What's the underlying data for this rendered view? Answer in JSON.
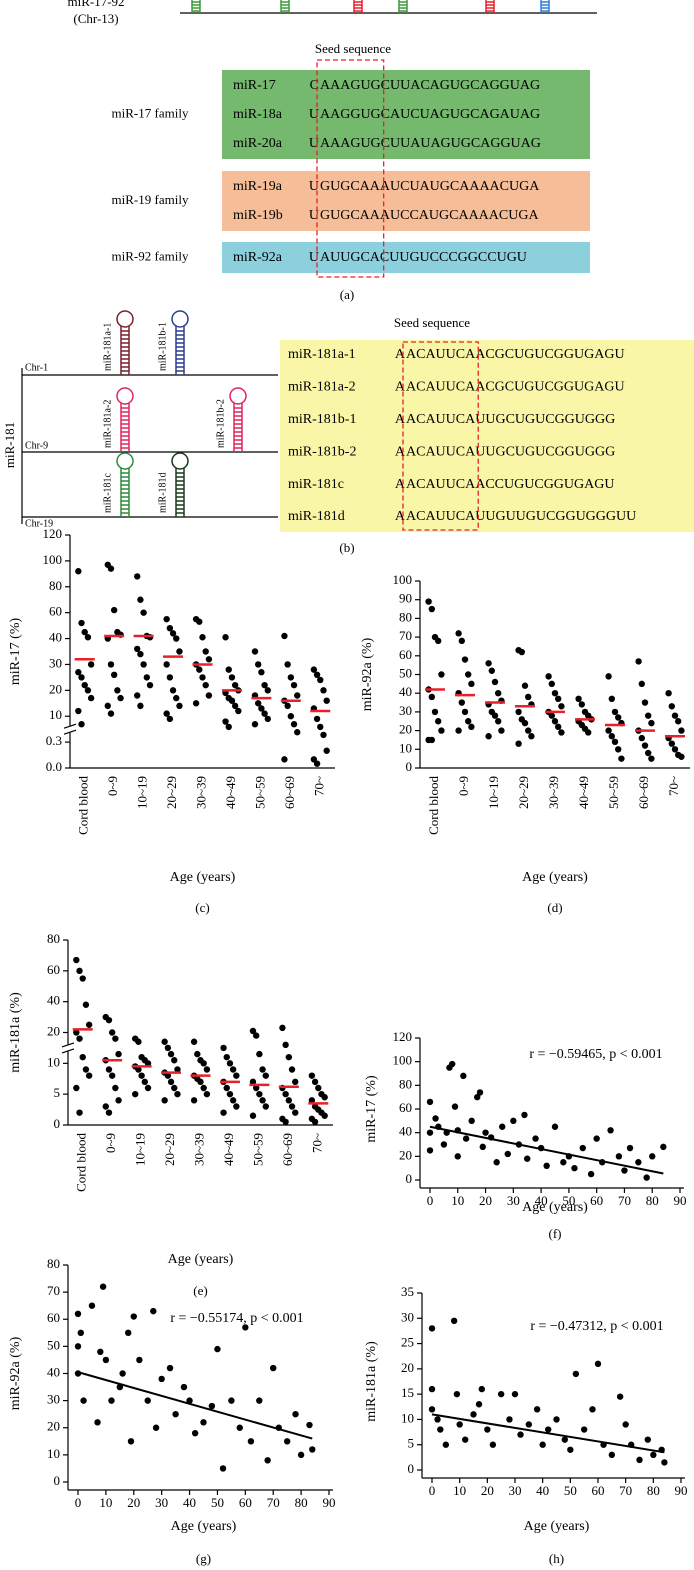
{
  "panel_a": {
    "cluster": "miR-17-92",
    "chromosome": "(Chr-13)",
    "seed_title": "Seed sequence",
    "label": "(a)",
    "families": [
      {
        "name": "miR-17 family",
        "rows": [
          {
            "mirna": "miR-17",
            "pre": "C",
            "seed": "AAAGUG",
            "post": "CUUACAGUGCAGGUAG"
          },
          {
            "mirna": "miR-18a",
            "pre": "U",
            "seed": "AAGGUG",
            "post": "CAUCUAGUGCAGAUAG"
          },
          {
            "mirna": "miR-20a",
            "pre": "U",
            "seed": "AAAGUG",
            "post": "CUUAUAGUGCAGGUAG"
          }
        ]
      },
      {
        "name": "miR-19 family",
        "rows": [
          {
            "mirna": "miR-19a",
            "pre": "U",
            "seed": "GUGCAA",
            "post": "AUCUAUGCAAAACUGA"
          },
          {
            "mirna": "miR-19b",
            "pre": "U",
            "seed": "GUGCAA",
            "post": "AUCCAUGCAAAACUGA"
          }
        ]
      },
      {
        "name": "miR-92 family",
        "rows": [
          {
            "mirna": "miR-92a",
            "pre": "U",
            "seed": "AUUGCA",
            "post": "CUUGUCCCGGCCUGU"
          }
        ]
      }
    ]
  },
  "panel_b": {
    "cluster": "miR-181",
    "chromosomes": [
      "Chr-1",
      "Chr-9",
      "Chr-19"
    ],
    "hairpins": [
      "miR-181a-1",
      "miR-181b-1",
      "miR-181a-2",
      "miR-181b-2",
      "miR-181c",
      "miR-181d"
    ],
    "seed_title": "Seed sequence",
    "label": "(b)",
    "rows": [
      {
        "mirna": "miR-181a-1",
        "pre": "A",
        "seed": "ACAUUCA",
        "post": "ACGCUGUCGGUGAGU"
      },
      {
        "mirna": "miR-181a-2",
        "pre": "A",
        "seed": "ACAUUCA",
        "post": "ACGCUGUCGGUGAGU"
      },
      {
        "mirna": "miR-181b-1",
        "pre": "A",
        "seed": "ACAUUCA",
        "post": "UUGCUGUCGGUGGG"
      },
      {
        "mirna": "miR-181b-2",
        "pre": "A",
        "seed": "ACAUUCA",
        "post": "UUGCUGUCGGUGGG"
      },
      {
        "mirna": "miR-181c",
        "pre": "A",
        "seed": "ACAUUCA",
        "post": "ACCUGUCGGUGAGU"
      },
      {
        "mirna": "miR-181d",
        "pre": "A",
        "seed": "ACAUUCA",
        "post": "UUGUUGUCGGUGGGUU"
      }
    ]
  },
  "chart_data": [
    {
      "type": "strip",
      "panel_label": "(c)",
      "y_label": "miR-17 (%)",
      "x_label": "Age (years)",
      "color": "#000000",
      "median_color": "#e8202a",
      "axis_break": true,
      "categories": [
        "Cord blood",
        "0~9",
        "10~19",
        "20~29",
        "30~39",
        "40~49",
        "50~59",
        "60~69",
        "70~"
      ],
      "values": [
        [
          92,
          52,
          45,
          41,
          30,
          27,
          25,
          22,
          20,
          17,
          12,
          7
        ],
        [
          97,
          94,
          62,
          45,
          43,
          40,
          30,
          26,
          20,
          17,
          14,
          11
        ],
        [
          88,
          70,
          60,
          42,
          41,
          36,
          34,
          30,
          25,
          22,
          18,
          14
        ],
        [
          55,
          48,
          44,
          40,
          35,
          30,
          25,
          20,
          17,
          14,
          11,
          9
        ],
        [
          55,
          53,
          41,
          35,
          32,
          30,
          28,
          25,
          22,
          18,
          15
        ],
        [
          41,
          28,
          25,
          22,
          20,
          19,
          17,
          16,
          14,
          12,
          8,
          6
        ],
        [
          35,
          30,
          27,
          22,
          20,
          18,
          15,
          13,
          11,
          9,
          7
        ],
        [
          42,
          30,
          25,
          22,
          18,
          16,
          14,
          10,
          7,
          4,
          0.1
        ],
        [
          28,
          26,
          24,
          20,
          16,
          13,
          9,
          6,
          3,
          0.2,
          0.1,
          0.05
        ]
      ],
      "medians": [
        32,
        42,
        42,
        33,
        30,
        20,
        17,
        16,
        12
      ],
      "ylim": [
        0,
        120
      ],
      "yticks": [
        {
          "value": 0,
          "label": "0.0"
        },
        0.3,
        10,
        20,
        30,
        40,
        60,
        80,
        100,
        120
      ]
    },
    {
      "type": "strip",
      "panel_label": "(d)",
      "y_label": "miR-92a (%)",
      "x_label": "Age (years)",
      "color": "#000000",
      "median_color": "#e8202a",
      "axis_break": false,
      "categories": [
        "Cord blood",
        "0~9",
        "10~19",
        "20~29",
        "30~39",
        "40~49",
        "50~59",
        "60~69",
        "70~"
      ],
      "values": [
        [
          89,
          85,
          70,
          68,
          50,
          42,
          38,
          30,
          25,
          20,
          15,
          15
        ],
        [
          72,
          68,
          58,
          50,
          45,
          40,
          35,
          30,
          25,
          22,
          20
        ],
        [
          56,
          52,
          46,
          40,
          36,
          34,
          30,
          28,
          25,
          20,
          17
        ],
        [
          63,
          62,
          44,
          38,
          34,
          30,
          26,
          24,
          20,
          17,
          13
        ],
        [
          49,
          45,
          40,
          37,
          33,
          30,
          28,
          25,
          22,
          19
        ],
        [
          37,
          34,
          30,
          28,
          26,
          25,
          23,
          21,
          19
        ],
        [
          49,
          37,
          30,
          27,
          24,
          20,
          17,
          14,
          10,
          5
        ],
        [
          57,
          45,
          35,
          28,
          24,
          20,
          16,
          12,
          8,
          5
        ],
        [
          40,
          33,
          28,
          25,
          20,
          16,
          13,
          10,
          7,
          6
        ]
      ],
      "medians": [
        42,
        39,
        35,
        33,
        30,
        26,
        23,
        20,
        17
      ],
      "ylim": [
        0,
        100
      ],
      "yticks": [
        0,
        10,
        20,
        30,
        40,
        50,
        60,
        70,
        80,
        90,
        100
      ]
    },
    {
      "type": "strip",
      "panel_label": "(e)",
      "y_label": "miR-181a (%)",
      "x_label": "Age (years)",
      "color": "#000000",
      "median_color": "#e8202a",
      "axis_break": true,
      "categories": [
        "Cord blood",
        "0~9",
        "10~19",
        "20~29",
        "30~39",
        "40~49",
        "50~59",
        "60~69",
        "70~"
      ],
      "values": [
        [
          67,
          60,
          55,
          38,
          25,
          20,
          18,
          12,
          9,
          8,
          6,
          2
        ],
        [
          30,
          28,
          20,
          18,
          13,
          11,
          9,
          8,
          6,
          4,
          3,
          2
        ],
        [
          18,
          17,
          12,
          11,
          10,
          9.5,
          9,
          8,
          7,
          6,
          5
        ],
        [
          17,
          15,
          13,
          11,
          9,
          8.5,
          8,
          7,
          6,
          5,
          4
        ],
        [
          17,
          13,
          11,
          10,
          9,
          8,
          7.5,
          7,
          6,
          5,
          4
        ],
        [
          15,
          12,
          10,
          9,
          8,
          7,
          6,
          5,
          4,
          3,
          2
        ],
        [
          21,
          19,
          13,
          9,
          8,
          7,
          6,
          5,
          4,
          3,
          1.5
        ],
        [
          23,
          16,
          12,
          9,
          7,
          6,
          5,
          4,
          3,
          2,
          1,
          0.5
        ],
        [
          8,
          7,
          6,
          5,
          4.5,
          4,
          3,
          2.5,
          2,
          1.5,
          1,
          0.5
        ]
      ],
      "medians": [
        22,
        11,
        9.5,
        8.5,
        8,
        7,
        6.5,
        6.2,
        3.5
      ],
      "ylim": [
        0,
        80
      ],
      "yticks": [
        0,
        5,
        10,
        20,
        40,
        60,
        80
      ]
    },
    {
      "type": "scatter",
      "panel_label": "(f)",
      "y_label": "miR-17 (%)",
      "x_label": "Age (years)",
      "annotation": "r = −0.59465, p < 0.001",
      "color": "#000000",
      "x": [
        0,
        0,
        0,
        2,
        3,
        5,
        6,
        7,
        8,
        9,
        10,
        10,
        12,
        13,
        15,
        17,
        18,
        19,
        20,
        22,
        24,
        26,
        28,
        30,
        32,
        34,
        35,
        38,
        40,
        42,
        45,
        48,
        50,
        52,
        55,
        58,
        60,
        62,
        65,
        68,
        70,
        72,
        75,
        78,
        80,
        84
      ],
      "values": [
        66,
        40,
        25,
        52,
        45,
        30,
        40,
        95,
        98,
        62,
        42,
        20,
        88,
        35,
        50,
        70,
        74,
        28,
        40,
        36,
        15,
        45,
        22,
        50,
        30,
        55,
        18,
        35,
        27,
        12,
        45,
        15,
        20,
        10,
        27,
        5,
        35,
        15,
        42,
        20,
        8,
        27,
        15,
        2,
        20,
        28
      ],
      "trend": {
        "x": [
          0,
          84
        ],
        "y": [
          45,
          5.5
        ]
      },
      "xlim": [
        0,
        90
      ],
      "xticks": [
        0,
        10,
        20,
        30,
        40,
        50,
        60,
        70,
        80,
        90
      ],
      "ylim": [
        0,
        120
      ],
      "yticks": [
        0,
        20,
        40,
        60,
        80,
        100,
        120
      ]
    },
    {
      "type": "scatter",
      "panel_label": "(g)",
      "y_label": "miR-92a (%)",
      "x_label": "Age (years)",
      "annotation": "r = −0.55174, p < 0.001",
      "color": "#000000",
      "x": [
        0,
        0,
        0,
        1,
        2,
        5,
        7,
        8,
        9,
        10,
        12,
        15,
        16,
        18,
        19,
        20,
        22,
        25,
        27,
        28,
        30,
        33,
        35,
        38,
        40,
        42,
        45,
        48,
        50,
        52,
        55,
        58,
        60,
        62,
        65,
        68,
        70,
        72,
        75,
        78,
        80,
        83,
        84
      ],
      "values": [
        62,
        50,
        40,
        55,
        30,
        65,
        22,
        48,
        72,
        45,
        30,
        35,
        40,
        55,
        15,
        61,
        45,
        30,
        63,
        20,
        38,
        42,
        25,
        35,
        30,
        18,
        22,
        28,
        49,
        5,
        30,
        20,
        57,
        15,
        30,
        8,
        42,
        20,
        15,
        25,
        10,
        21,
        12
      ],
      "trend": {
        "x": [
          0,
          84
        ],
        "y": [
          40.5,
          16
        ]
      },
      "xlim": [
        0,
        90
      ],
      "xticks": [
        0,
        10,
        20,
        30,
        40,
        50,
        60,
        70,
        80,
        90
      ],
      "ylim": [
        0,
        80
      ],
      "yticks": [
        0,
        10,
        20,
        30,
        40,
        50,
        60,
        70,
        80
      ]
    },
    {
      "type": "scatter",
      "panel_label": "(h)",
      "y_label": "miR-181a (%)",
      "x_label": "Age (years)",
      "annotation": "r = −0.47312, p < 0.001",
      "color": "#000000",
      "x": [
        0,
        0,
        0,
        2,
        3,
        5,
        8,
        9,
        10,
        12,
        15,
        17,
        18,
        20,
        22,
        25,
        28,
        30,
        32,
        35,
        38,
        40,
        42,
        45,
        48,
        50,
        52,
        55,
        58,
        60,
        62,
        65,
        68,
        70,
        72,
        75,
        78,
        80,
        83,
        84
      ],
      "values": [
        28,
        16,
        12,
        10,
        8,
        5,
        29.5,
        15,
        9,
        6,
        11,
        13,
        16,
        8,
        5,
        15,
        10,
        15,
        7,
        9,
        12,
        5,
        8,
        10,
        6,
        4,
        19,
        8,
        12,
        21,
        5,
        3,
        14.5,
        9,
        5,
        2,
        6,
        3,
        4,
        1.5
      ],
      "trend": {
        "x": [
          0,
          84
        ],
        "y": [
          11,
          3.5
        ]
      },
      "xlim": [
        0,
        90
      ],
      "xticks": [
        0,
        10,
        20,
        30,
        40,
        50,
        60,
        70,
        80,
        90
      ],
      "ylim": [
        0,
        35
      ],
      "yticks": [
        0,
        5,
        10,
        15,
        20,
        25,
        30,
        35
      ]
    }
  ]
}
